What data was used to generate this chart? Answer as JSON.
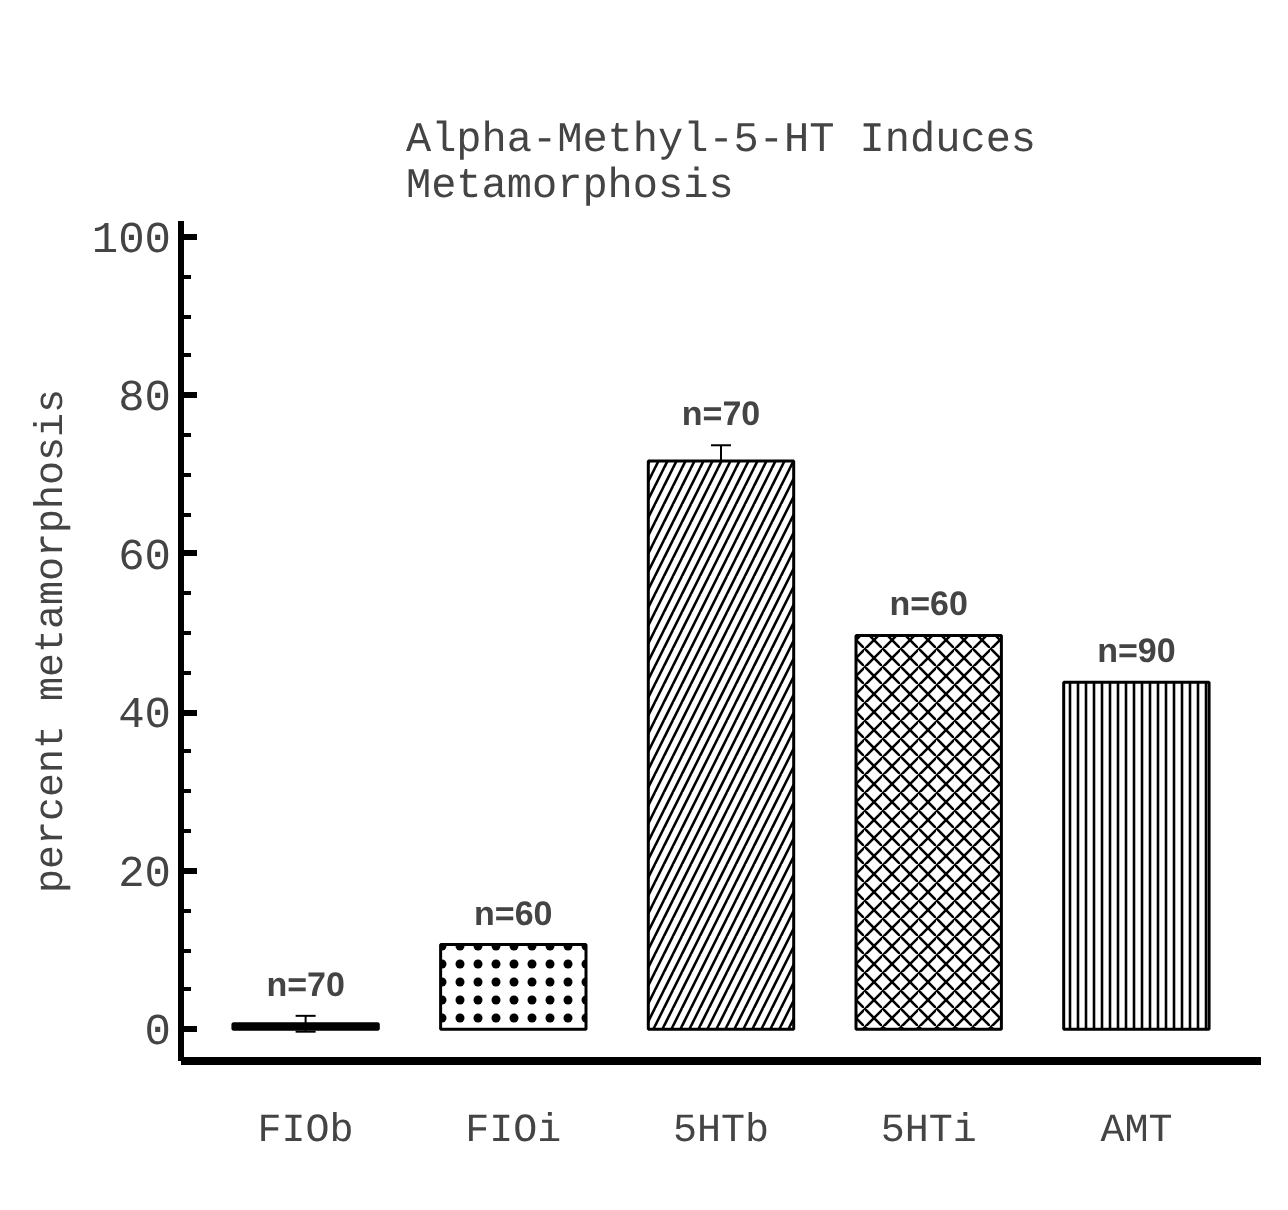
{
  "chart_data": {
    "type": "bar",
    "title": "Alpha-Methyl-5-HT Induces\nMetamorphosis",
    "ylabel": "percent metamorphosis",
    "categories": [
      "FIOb",
      "FIOi",
      "5HTb",
      "5HTi",
      "AMT"
    ],
    "values": [
      0.7,
      10.7,
      71.7,
      49.7,
      43.8
    ],
    "errors": [
      1,
      null,
      2,
      null,
      null
    ],
    "colors": [
      "#000000",
      "#ffffff",
      "#ffffff",
      "#ffffff",
      "#ffffff"
    ],
    "ylim": [
      -4,
      102
    ],
    "yticks": [
      0,
      20,
      40,
      60,
      80,
      100
    ],
    "grid": false,
    "annotations": [
      {
        "text": "n=70",
        "x": "FIOb",
        "y": 1.7
      },
      {
        "text": "n=60",
        "x": "FIOi",
        "y": 10.7
      },
      {
        "text": "n=70",
        "x": "5HTb",
        "y": 73.7
      },
      {
        "text": "n=60",
        "x": "5HTi",
        "y": 49.7
      },
      {
        "text": "n=90",
        "x": "AMT",
        "y": 43.8
      }
    ]
  }
}
